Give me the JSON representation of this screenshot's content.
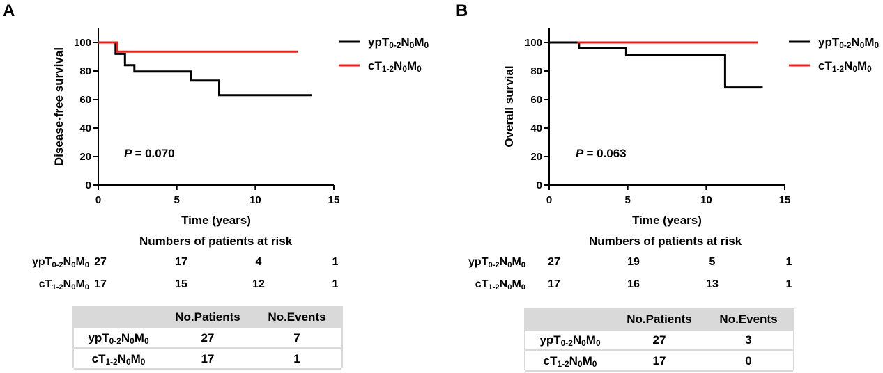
{
  "chart_data": [
    {
      "type": "line",
      "panel": "A",
      "title": "",
      "xlabel": "Time (years)",
      "ylabel": "Disease-free survival",
      "xlim": [
        0,
        15
      ],
      "ylim": [
        0,
        100
      ],
      "xticks": [
        "0",
        "5",
        "10",
        "15"
      ],
      "yticks": [
        "0",
        "20",
        "40",
        "60",
        "80",
        "100"
      ],
      "annotation": {
        "p_label": "P",
        "p_value": "= 0.070"
      },
      "legend": {
        "position": "top-right",
        "entries": [
          {
            "base": "ypT",
            "sub1": "0-2",
            "mid": "N",
            "sub2": "0",
            "end": "M",
            "sub3": "0",
            "color": "#000000"
          },
          {
            "base": "cT",
            "sub1": "1-2",
            "mid": "N",
            "sub2": "0",
            "end": "M",
            "sub3": "0",
            "color": "#e8201e"
          }
        ]
      },
      "series": [
        {
          "name": "ypT0-2N0M0",
          "color": "#000000",
          "step_points": [
            [
              0,
              100
            ],
            [
              1.1,
              100
            ],
            [
              1.1,
              92
            ],
            [
              1.7,
              92
            ],
            [
              1.7,
              84
            ],
            [
              2.3,
              84
            ],
            [
              2.3,
              79.6
            ],
            [
              5.9,
              79.6
            ],
            [
              5.9,
              73.3
            ],
            [
              7.7,
              73.3
            ],
            [
              7.7,
              63
            ],
            [
              13.6,
              63
            ]
          ]
        },
        {
          "name": "cT1-2N0M0",
          "color": "#e8201e",
          "step_points": [
            [
              0,
              100
            ],
            [
              1.2,
              100
            ],
            [
              1.2,
              93.5
            ],
            [
              12.7,
              93.5
            ]
          ]
        }
      ],
      "at_risk": {
        "title": "Numbers of patients at risk",
        "rows": [
          {
            "base": "ypT",
            "sub1": "0-2",
            "mid": "N",
            "sub2": "0",
            "end": "M",
            "sub3": "0",
            "values": [
              "27",
              "17",
              "4",
              "1"
            ]
          },
          {
            "base": "cT",
            "sub1": "1-2",
            "mid": "N",
            "sub2": "0",
            "end": "M",
            "sub3": "0",
            "values": [
              "17",
              "15",
              "12",
              "1"
            ]
          }
        ]
      },
      "summary_table": {
        "headers": [
          "",
          "No.Patients",
          "No.Events"
        ],
        "rows": [
          {
            "base": "ypT",
            "sub1": "0-2",
            "mid": "N",
            "sub2": "0",
            "end": "M",
            "sub3": "0",
            "patients": "27",
            "events": "7"
          },
          {
            "base": "cT",
            "sub1": "1-2",
            "mid": "N",
            "sub2": "0",
            "end": "M",
            "sub3": "0",
            "patients": "17",
            "events": "1"
          }
        ]
      }
    },
    {
      "type": "line",
      "panel": "B",
      "title": "",
      "xlabel": "Time (years)",
      "ylabel": "Overall survial",
      "xlim": [
        0,
        15
      ],
      "ylim": [
        0,
        100
      ],
      "xticks": [
        "0",
        "5",
        "10",
        "15"
      ],
      "yticks": [
        "0",
        "20",
        "40",
        "60",
        "80",
        "100"
      ],
      "annotation": {
        "p_label": "P",
        "p_value": "= 0.063"
      },
      "legend": {
        "position": "top-right",
        "entries": [
          {
            "base": "ypT",
            "sub1": "0-2",
            "mid": "N",
            "sub2": "0",
            "end": "M",
            "sub3": "0",
            "color": "#000000"
          },
          {
            "base": "cT",
            "sub1": "1-2",
            "mid": "N",
            "sub2": "0",
            "end": "M",
            "sub3": "0",
            "color": "#e8201e"
          }
        ]
      },
      "series": [
        {
          "name": "ypT0-2N0M0",
          "color": "#000000",
          "step_points": [
            [
              0,
              100
            ],
            [
              1.9,
              100
            ],
            [
              1.9,
              96
            ],
            [
              4.9,
              96
            ],
            [
              4.9,
              91
            ],
            [
              11.2,
              91
            ],
            [
              11.2,
              68.5
            ],
            [
              13.6,
              68.5
            ]
          ]
        },
        {
          "name": "cT1-2N0M0",
          "color": "#e8201e",
          "step_points": [
            [
              1.8,
              100
            ],
            [
              13.3,
              100
            ]
          ]
        }
      ],
      "at_risk": {
        "title": "Numbers of patients at risk",
        "rows": [
          {
            "base": "ypT",
            "sub1": "0-2",
            "mid": "N",
            "sub2": "0",
            "end": "M",
            "sub3": "0",
            "values": [
              "27",
              "19",
              "5",
              "1"
            ]
          },
          {
            "base": "cT",
            "sub1": "1-2",
            "mid": "N",
            "sub2": "0",
            "end": "M",
            "sub3": "0",
            "values": [
              "17",
              "16",
              "13",
              "1"
            ]
          }
        ]
      },
      "summary_table": {
        "headers": [
          "",
          "No.Patients",
          "No.Events"
        ],
        "rows": [
          {
            "base": "ypT",
            "sub1": "0-2",
            "mid": "N",
            "sub2": "0",
            "end": "M",
            "sub3": "0",
            "patients": "27",
            "events": "3"
          },
          {
            "base": "cT",
            "sub1": "1-2",
            "mid": "N",
            "sub2": "0",
            "end": "M",
            "sub3": "0",
            "patients": "17",
            "events": "0"
          }
        ]
      }
    }
  ],
  "panels": {
    "a_letter": "A",
    "b_letter": "B"
  }
}
